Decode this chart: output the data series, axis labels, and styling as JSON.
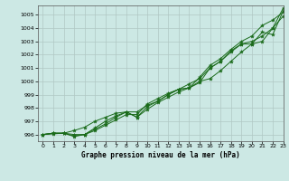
{
  "title": "Graphe pression niveau de la mer (hPa)",
  "bg_color": "#cce8e4",
  "grid_color": "#b0c8c4",
  "line_color": "#1a6b1a",
  "xlim": [
    -0.5,
    23
  ],
  "ylim": [
    995.5,
    1005.7
  ],
  "yticks": [
    996,
    997,
    998,
    999,
    1000,
    1001,
    1002,
    1003,
    1004,
    1005
  ],
  "xticks": [
    0,
    1,
    2,
    3,
    4,
    5,
    6,
    7,
    8,
    9,
    10,
    11,
    12,
    13,
    14,
    15,
    16,
    17,
    18,
    19,
    20,
    21,
    22,
    23
  ],
  "line1": [
    996.0,
    996.1,
    996.1,
    995.9,
    996.0,
    996.3,
    996.7,
    997.1,
    997.5,
    997.5,
    998.3,
    998.7,
    999.1,
    999.4,
    999.5,
    1000.0,
    1000.2,
    1000.8,
    1001.5,
    1002.2,
    1002.8,
    1003.0,
    1004.0,
    1004.9
  ],
  "line2": [
    996.0,
    996.1,
    996.1,
    995.85,
    996.0,
    996.4,
    996.8,
    997.3,
    997.7,
    997.3,
    997.9,
    998.4,
    998.8,
    999.2,
    999.5,
    999.9,
    1001.0,
    1001.5,
    1002.3,
    1002.8,
    1002.8,
    1003.7,
    1003.5,
    1005.3
  ],
  "line3": [
    996.0,
    996.1,
    996.1,
    996.0,
    996.0,
    996.5,
    997.0,
    997.4,
    997.7,
    997.3,
    998.1,
    998.5,
    999.0,
    999.4,
    999.5,
    1000.3,
    1001.2,
    1001.7,
    1002.4,
    1003.0,
    1003.4,
    1004.2,
    1004.6,
    1005.2
  ],
  "line4": [
    996.0,
    996.05,
    996.1,
    996.3,
    996.55,
    997.0,
    997.3,
    997.6,
    997.7,
    997.7,
    998.2,
    998.5,
    999.0,
    999.4,
    999.8,
    1000.2,
    1001.0,
    1001.5,
    1002.2,
    1002.8,
    1003.0,
    1003.4,
    1004.0,
    1005.5
  ]
}
